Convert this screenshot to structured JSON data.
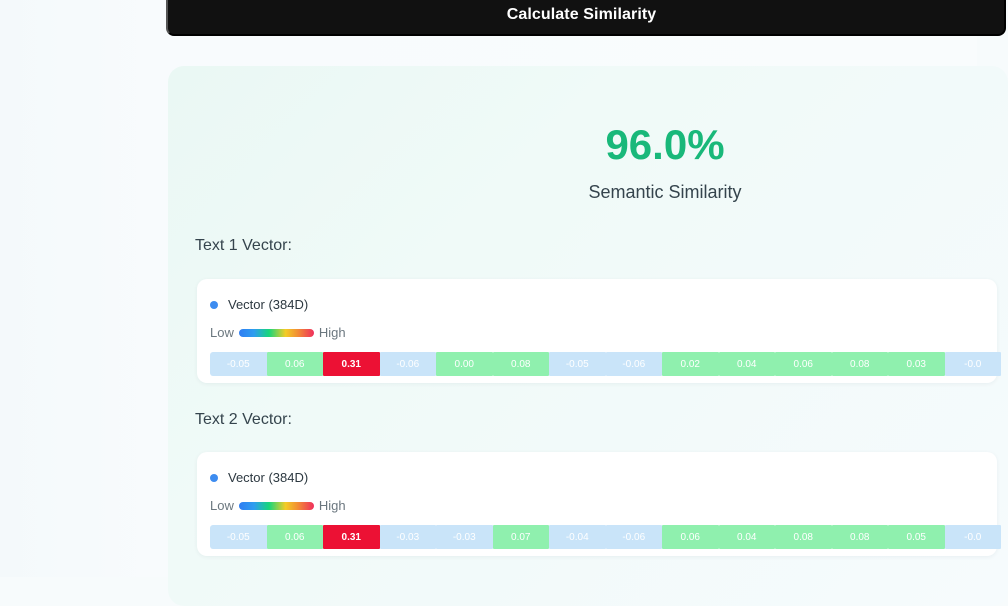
{
  "calculate_button": {
    "label": "Calculate Similarity"
  },
  "result": {
    "score": "96.0%",
    "label": "Semantic Similarity"
  },
  "colors": {
    "score_green": "#19b87a",
    "high_red": "#ec1134",
    "positive_green": "#8ff0ae",
    "low_blue": "#c9e4f9",
    "legend_blue": "#3d8cf0",
    "dark_button": "#111111"
  },
  "vectors": [
    {
      "title": "Text 1 Vector:",
      "name": "Vector (384D)",
      "scale_low": "Low",
      "scale_high": "High",
      "cells": [
        {
          "value": "-0.05",
          "tone": "blue"
        },
        {
          "value": "0.06",
          "tone": "green"
        },
        {
          "value": "0.31",
          "tone": "red"
        },
        {
          "value": "-0.06",
          "tone": "blue"
        },
        {
          "value": "0.00",
          "tone": "green"
        },
        {
          "value": "0.08",
          "tone": "green"
        },
        {
          "value": "-0.05",
          "tone": "blue"
        },
        {
          "value": "-0.06",
          "tone": "blue"
        },
        {
          "value": "0.02",
          "tone": "green"
        },
        {
          "value": "0.04",
          "tone": "green"
        },
        {
          "value": "0.06",
          "tone": "green"
        },
        {
          "value": "0.08",
          "tone": "green"
        },
        {
          "value": "0.03",
          "tone": "green"
        },
        {
          "value": "-0.0",
          "tone": "blue"
        }
      ]
    },
    {
      "title": "Text 2 Vector:",
      "name": "Vector (384D)",
      "scale_low": "Low",
      "scale_high": "High",
      "cells": [
        {
          "value": "-0.05",
          "tone": "blue"
        },
        {
          "value": "0.06",
          "tone": "green"
        },
        {
          "value": "0.31",
          "tone": "red"
        },
        {
          "value": "-0.03",
          "tone": "blue"
        },
        {
          "value": "-0.03",
          "tone": "blue"
        },
        {
          "value": "0.07",
          "tone": "green"
        },
        {
          "value": "-0.04",
          "tone": "blue"
        },
        {
          "value": "-0.06",
          "tone": "blue"
        },
        {
          "value": "0.06",
          "tone": "green"
        },
        {
          "value": "0.04",
          "tone": "green"
        },
        {
          "value": "0.08",
          "tone": "green"
        },
        {
          "value": "0.08",
          "tone": "green"
        },
        {
          "value": "0.05",
          "tone": "green"
        },
        {
          "value": "-0.0",
          "tone": "blue"
        }
      ]
    }
  ]
}
